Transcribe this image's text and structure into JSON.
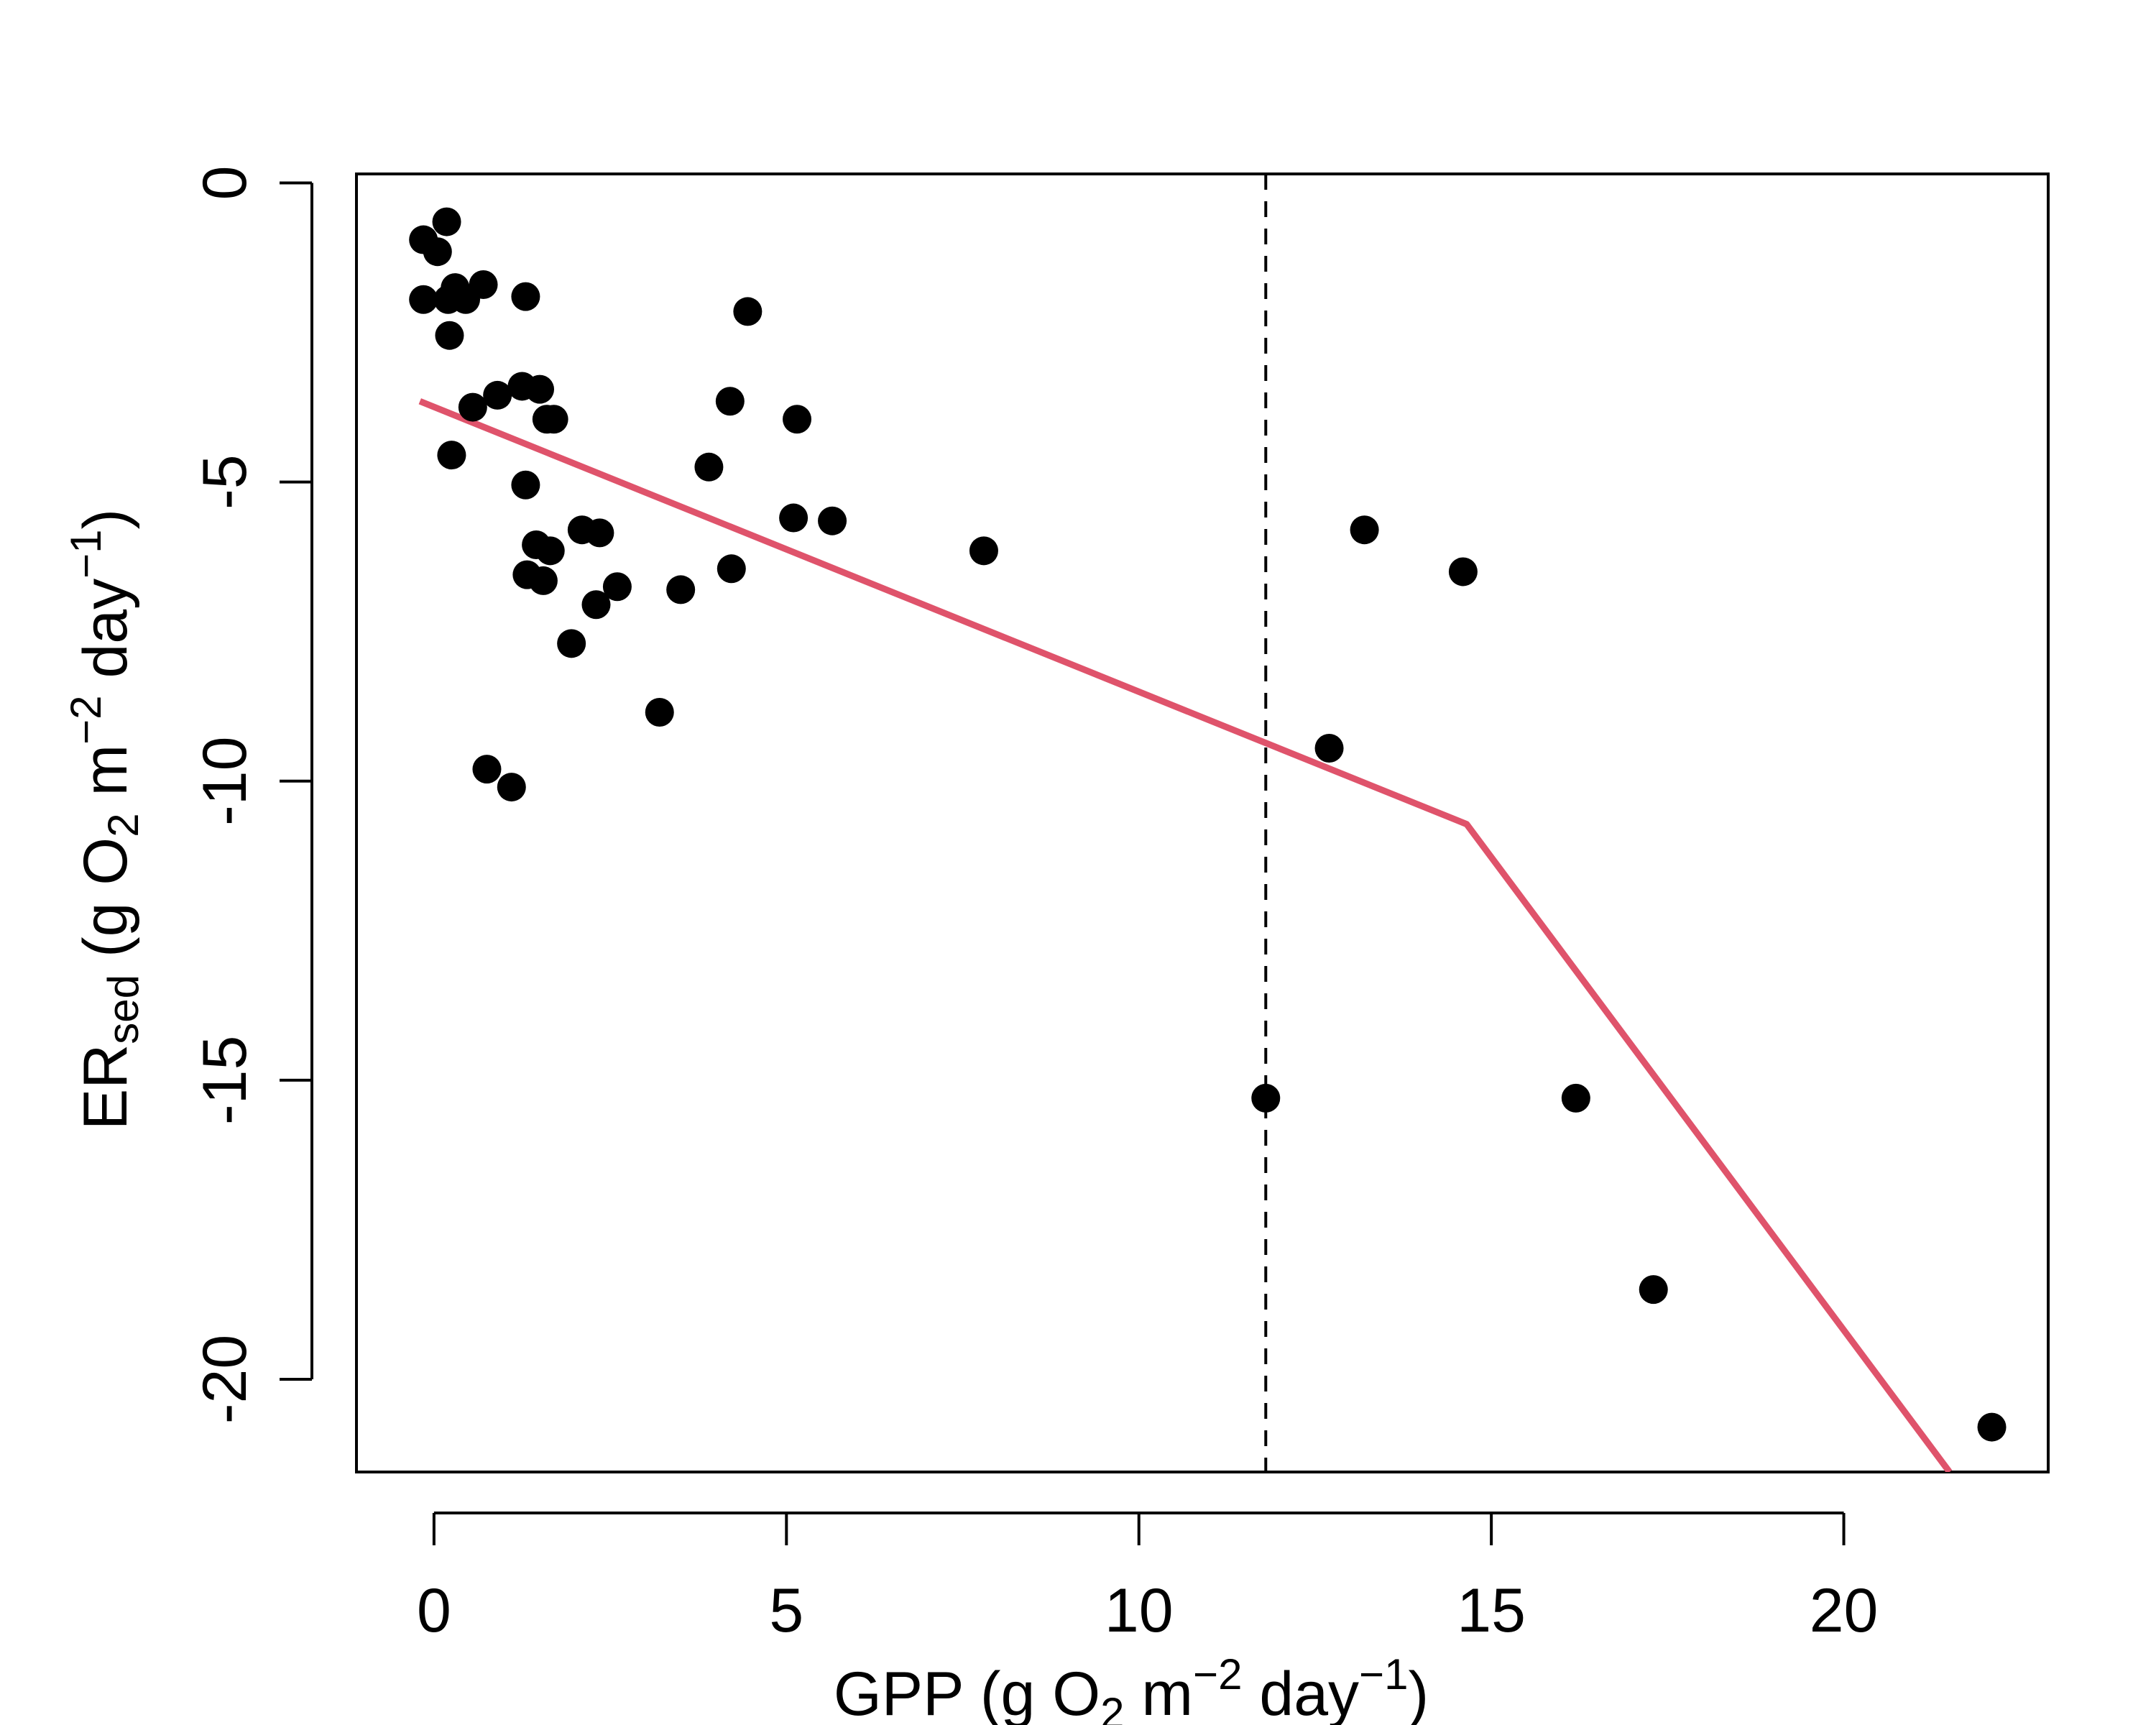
{
  "chart_data": {
    "type": "scatter",
    "xlabel": {
      "base": "GPP (g O",
      "o2_sub": "2",
      "mid": " m",
      "m_sup": "−2",
      "day": " day",
      "day_sup": "−1",
      "end": ")"
    },
    "ylabel": {
      "base": "ER",
      "base_sub": "sed",
      "rest": " (g O",
      "o2_sub": "2",
      "mid": " m",
      "m_sup": "−2",
      "day": " day",
      "day_sup": "−1",
      "end": ")"
    },
    "xlim": [
      -1.1,
      22.9
    ],
    "ylim": [
      -21.55,
      0.15
    ],
    "xticks": [
      0,
      5,
      10,
      15,
      20
    ],
    "xtick_labels": [
      "0",
      "5",
      "10",
      "15",
      "20"
    ],
    "yticks": [
      0,
      -5,
      -10,
      -15,
      -20
    ],
    "ytick_labels": [
      "0",
      "-5",
      "-10",
      "-15",
      "-20"
    ],
    "grid": false,
    "series": [
      {
        "x": [
          -0.15,
          -0.15,
          0.05,
          0.18,
          0.2,
          0.22,
          0.25,
          0.3,
          0.45,
          0.55,
          0.7,
          0.75,
          0.9,
          1.1,
          1.25,
          1.3,
          1.3,
          1.32,
          1.45,
          1.5,
          1.55,
          1.6,
          1.65,
          1.7,
          1.95,
          2.1,
          2.3,
          2.35,
          2.6,
          3.2,
          3.5,
          3.9,
          4.2,
          4.22,
          4.45,
          5.1,
          5.15,
          5.65,
          7.8,
          11.8,
          12.7,
          13.2,
          14.6,
          16.2,
          17.3,
          22.1
        ],
        "y": [
          -0.95,
          -1.95,
          -1.15,
          -0.65,
          -1.95,
          -2.55,
          -4.55,
          -1.75,
          -1.95,
          -3.75,
          -1.7,
          -9.8,
          -3.55,
          -10.1,
          -3.4,
          -1.9,
          -5.05,
          -6.55,
          -6.05,
          -3.45,
          -6.65,
          -3.95,
          -6.15,
          -3.95,
          -7.7,
          -5.8,
          -7.05,
          -5.85,
          -6.75,
          -8.85,
          -6.8,
          -4.75,
          -3.65,
          -6.45,
          -2.15,
          -5.6,
          -3.95,
          -5.65,
          -6.15,
          -15.3,
          -9.45,
          -5.8,
          -6.5,
          -15.3,
          -18.5,
          -20.8
        ]
      }
    ],
    "fit_line": {
      "x": [
        -0.2,
        14.65,
        21.5
      ],
      "y": [
        -3.65,
        -10.72,
        -21.55
      ],
      "color": "#DF536B"
    },
    "vline": {
      "x": 11.8,
      "style": "dashed"
    },
    "point_color": "#000000"
  }
}
